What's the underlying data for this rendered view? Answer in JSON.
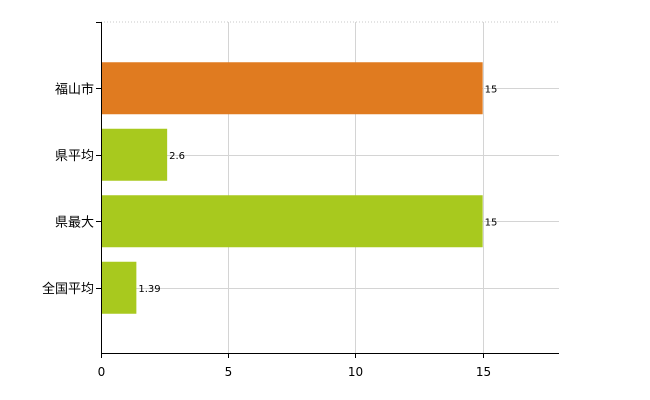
{
  "chart_data": {
    "type": "bar",
    "orientation": "horizontal",
    "categories": [
      "福山市",
      "県平均",
      "県最大",
      "全国平均"
    ],
    "values": [
      15,
      2.6,
      15,
      1.39
    ],
    "value_labels": [
      "15",
      "2.6",
      "15",
      "1.39"
    ],
    "bar_colors": [
      "#E07B20",
      "#A8C91E",
      "#A8C91E",
      "#A8C91E"
    ],
    "xlim": [
      0,
      18
    ],
    "xticks": [
      0,
      5,
      10,
      15
    ],
    "xtick_labels": [
      "0",
      "5",
      "10",
      "15"
    ],
    "grid": true
  }
}
